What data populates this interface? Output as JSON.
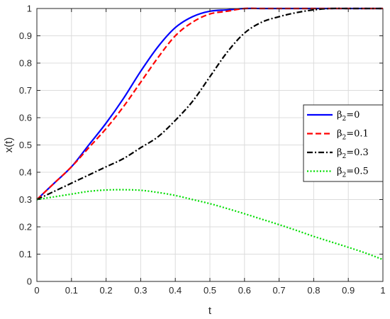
{
  "chart_data": {
    "type": "line",
    "title": "",
    "xlabel": "t",
    "ylabel": "x(t)",
    "xlim": [
      0,
      1
    ],
    "ylim": [
      0,
      1
    ],
    "grid": true,
    "legend_position": "right",
    "xticks": [
      "0",
      "0.1",
      "0.2",
      "0.3",
      "0.4",
      "0.5",
      "0.6",
      "0.7",
      "0.8",
      "0.9",
      "1"
    ],
    "yticks": [
      "0",
      "0.1",
      "0.2",
      "0.3",
      "0.4",
      "0.5",
      "0.6",
      "0.7",
      "0.8",
      "0.9",
      "1"
    ],
    "series": [
      {
        "name": "β2=0",
        "legend_symbol": "β",
        "legend_subscript": "2",
        "legend_value": "=0",
        "color": "#0000FF",
        "style": "solid",
        "x": [
          0,
          0.05,
          0.1,
          0.15,
          0.2,
          0.25,
          0.3,
          0.35,
          0.4,
          0.45,
          0.5,
          0.55,
          0.6,
          0.65,
          0.7,
          0.75,
          0.8,
          0.9,
          1.0
        ],
        "y": [
          0.3,
          0.36,
          0.42,
          0.5,
          0.58,
          0.67,
          0.77,
          0.86,
          0.93,
          0.97,
          0.99,
          0.995,
          1.0,
          1.0,
          1.0,
          1.0,
          1.0,
          1.0,
          1.0
        ]
      },
      {
        "name": "β2=0.1",
        "legend_symbol": "β",
        "legend_subscript": "2",
        "legend_value": "=0.1",
        "color": "#FF0000",
        "style": "dashed",
        "x": [
          0,
          0.05,
          0.1,
          0.15,
          0.2,
          0.25,
          0.3,
          0.35,
          0.4,
          0.45,
          0.5,
          0.55,
          0.6,
          0.65,
          0.7,
          0.75,
          0.8,
          0.9,
          1.0
        ],
        "y": [
          0.3,
          0.36,
          0.42,
          0.49,
          0.56,
          0.64,
          0.73,
          0.82,
          0.9,
          0.95,
          0.98,
          0.99,
          1.0,
          1.0,
          1.0,
          1.0,
          1.0,
          1.0,
          1.0
        ]
      },
      {
        "name": "β2=0.3",
        "legend_symbol": "β",
        "legend_subscript": "2",
        "legend_value": "=0.3",
        "color": "#000000",
        "style": "dashdot",
        "x": [
          0,
          0.05,
          0.1,
          0.15,
          0.2,
          0.25,
          0.3,
          0.35,
          0.4,
          0.45,
          0.5,
          0.55,
          0.6,
          0.65,
          0.7,
          0.75,
          0.8,
          0.85,
          0.9,
          0.95,
          1.0
        ],
        "y": [
          0.3,
          0.33,
          0.36,
          0.39,
          0.42,
          0.45,
          0.49,
          0.53,
          0.59,
          0.66,
          0.75,
          0.84,
          0.91,
          0.95,
          0.97,
          0.985,
          0.995,
          1.0,
          1.0,
          1.0,
          1.0
        ]
      },
      {
        "name": "β2=0.5",
        "legend_symbol": "β",
        "legend_subscript": "2",
        "legend_value": "=0.5",
        "color": "#00DD00",
        "style": "dotted",
        "x": [
          0,
          0.05,
          0.1,
          0.15,
          0.2,
          0.25,
          0.3,
          0.35,
          0.4,
          0.45,
          0.5,
          0.55,
          0.6,
          0.65,
          0.7,
          0.75,
          0.8,
          0.85,
          0.9,
          0.95,
          1.0
        ],
        "y": [
          0.3,
          0.31,
          0.32,
          0.33,
          0.335,
          0.336,
          0.334,
          0.326,
          0.315,
          0.3,
          0.285,
          0.267,
          0.248,
          0.228,
          0.208,
          0.187,
          0.165,
          0.145,
          0.125,
          0.104,
          0.08
        ]
      }
    ]
  }
}
